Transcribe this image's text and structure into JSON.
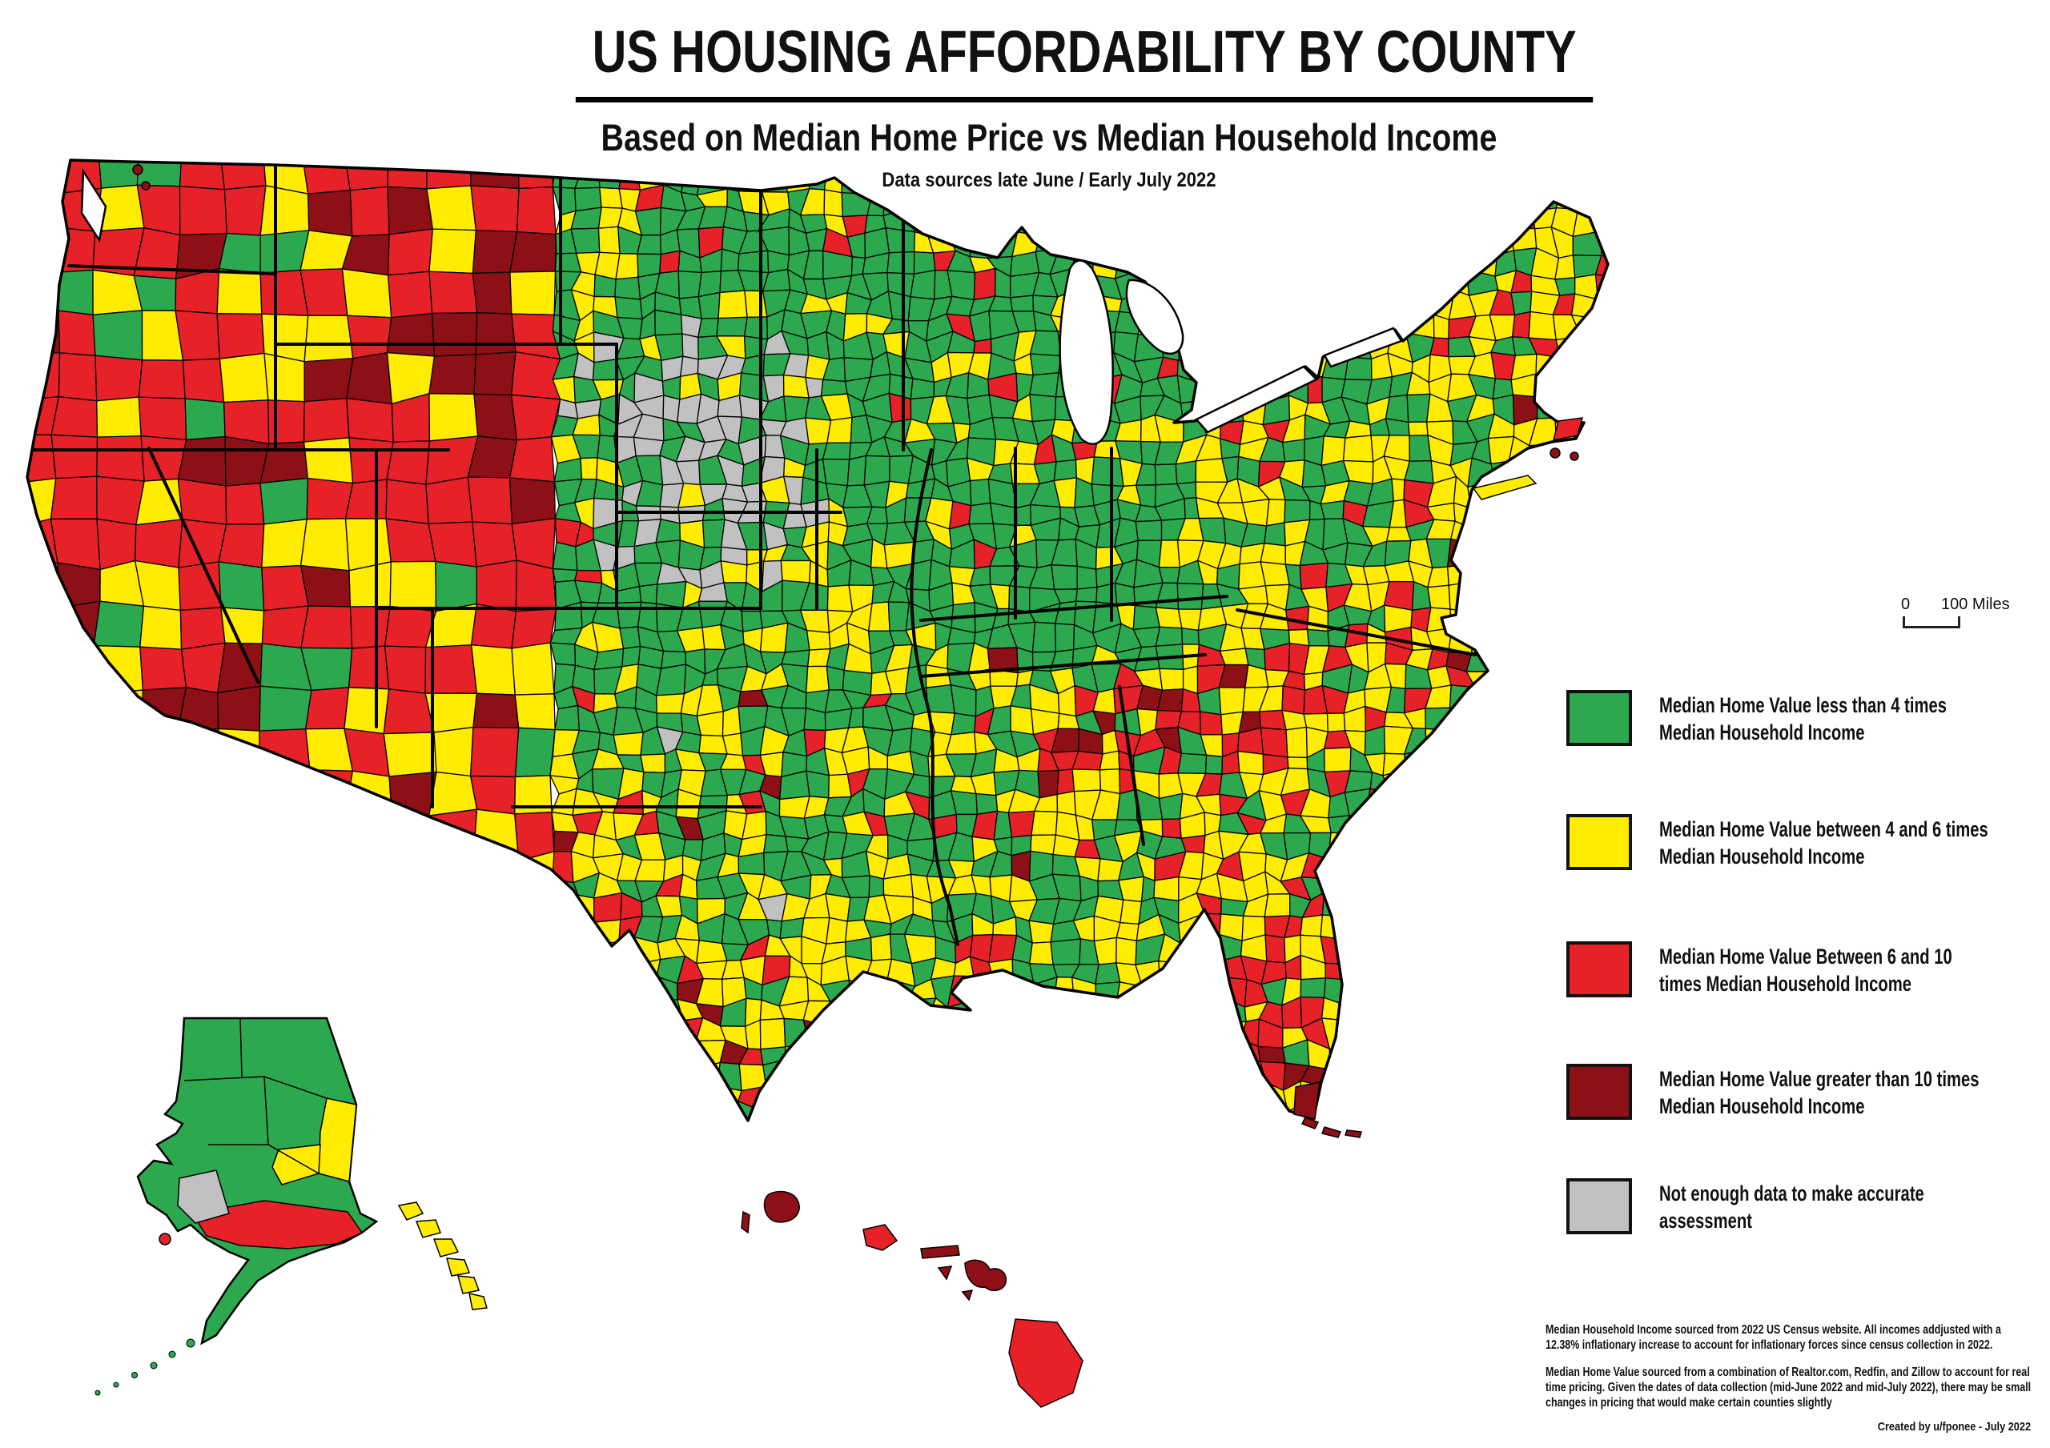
{
  "header": {
    "title": "US HOUSING AFFORDABILITY BY COUNTY",
    "subtitle": "Based on Median Home Price vs Median Household Income",
    "data_note": "Data sources late June / Early July 2022"
  },
  "scale_bar": {
    "zero_label": "0",
    "distance_label": "100 Miles"
  },
  "legend": {
    "items": [
      {
        "id": "less-than-4x",
        "label": "Median Home Value less than 4 times Median Household Income",
        "color": "#2CA94F"
      },
      {
        "id": "4-to-6x",
        "label": "Median Home Value between 4 and 6 times Median Household Income",
        "color": "#FFEC00"
      },
      {
        "id": "6-to-10x",
        "label": "Median Home Value Between 6 and 10 times Median Household Income",
        "color": "#E62228"
      },
      {
        "id": "more-than-10x",
        "label": "Median Home Value greater than 10 times Median Household Income",
        "color": "#8D1016"
      },
      {
        "id": "no-data",
        "label": "Not enough data to make accurate assessment",
        "color": "#C1C1C1"
      }
    ]
  },
  "map": {
    "regions": [
      "contiguous-united-states",
      "alaska",
      "hawaii"
    ],
    "category_colors": {
      "green": "#2CA94F",
      "yellow": "#FFEC00",
      "red": "#E62228",
      "dark_red": "#8D1016",
      "gray": "#C1C1C1"
    },
    "border_color": "#000000"
  },
  "footnotes": {
    "p1": "Median Household Income sourced from 2022 US Census website.  All incomes addjusted with a 12.38% inflationary increase to account for inflationary forces since census collection in 2022.",
    "p2": "Median Home Value sourced from a combination of Realtor.com, Redfin, and Zillow to account for real time pricing.  Given the dates of data collection (mid-June 2022 and mid-July 2022), there may be small changes in pricing that would make certain counties slightly"
  },
  "credit": "Created by u/fponee - July 2022"
}
